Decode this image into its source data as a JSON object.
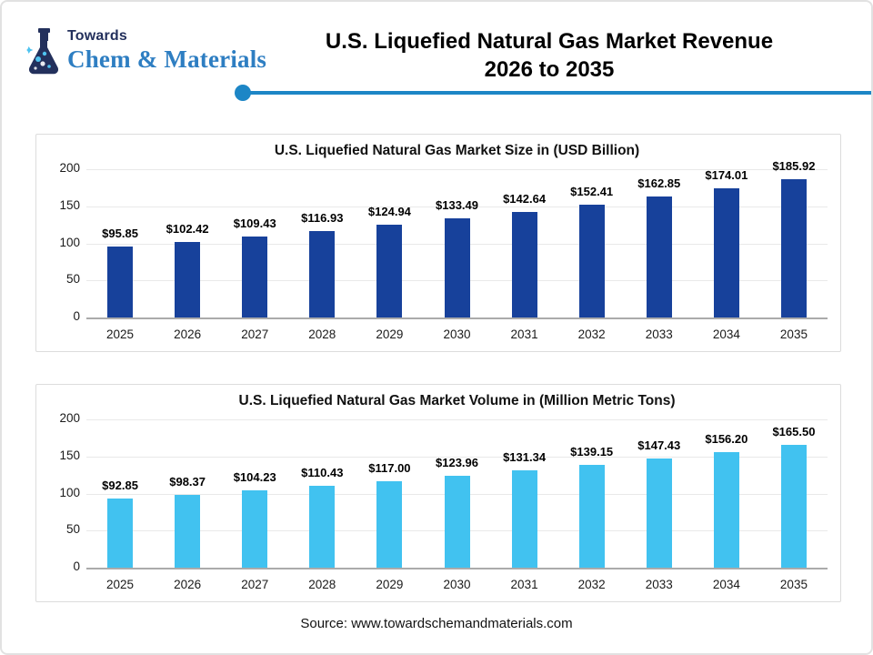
{
  "header": {
    "logo": {
      "towards": "Towards",
      "brand": "Chem & Materials"
    },
    "title_line1": "U.S. Liquefied Natural Gas Market Revenue",
    "title_line2": "2026 to 2035"
  },
  "footer": {
    "source": "Source: www.towardschemandmaterials.com"
  },
  "colors": {
    "size_bar": "#17419b",
    "volume_bar": "#41c2f0",
    "divider": "#1d86c6",
    "logo_navy": "#23305c",
    "brand_blue": "#2e7ec2",
    "gridline": "#e9e9e9",
    "axis_line": "#ababab"
  },
  "chart_data": [
    {
      "type": "bar",
      "title": "U.S. Liquefied Natural Gas Market Size in (USD Billion)",
      "categories": [
        "2025",
        "2026",
        "2027",
        "2028",
        "2029",
        "2030",
        "2031",
        "2032",
        "2033",
        "2034",
        "2035"
      ],
      "values": [
        95.85,
        102.42,
        109.43,
        116.93,
        124.94,
        133.49,
        142.64,
        152.41,
        162.85,
        174.01,
        185.92
      ],
      "labels": [
        "$95.85",
        "$102.42",
        "$109.43",
        "$116.93",
        "$124.94",
        "$133.49",
        "$142.64",
        "$152.41",
        "$162.85",
        "$174.01",
        "$185.92"
      ],
      "xlabel": "",
      "ylabel": "",
      "ylim": [
        0,
        200
      ],
      "yticks": [
        0,
        50,
        100,
        150,
        200
      ],
      "grid": true,
      "legend": "none",
      "bar_color": "#17419b"
    },
    {
      "type": "bar",
      "title": "U.S. Liquefied Natural Gas Market Volume in (Million Metric Tons)",
      "categories": [
        "2025",
        "2026",
        "2027",
        "2028",
        "2029",
        "2030",
        "2031",
        "2032",
        "2033",
        "2034",
        "2035"
      ],
      "values": [
        92.85,
        98.37,
        104.23,
        110.43,
        117.0,
        123.96,
        131.34,
        139.15,
        147.43,
        156.2,
        165.5
      ],
      "labels": [
        "$92.85",
        "$98.37",
        "$104.23",
        "$110.43",
        "$117.00",
        "$123.96",
        "$131.34",
        "$139.15",
        "$147.43",
        "$156.20",
        "$165.50"
      ],
      "xlabel": "",
      "ylabel": "",
      "ylim": [
        0,
        200
      ],
      "yticks": [
        0,
        50,
        100,
        150,
        200
      ],
      "grid": true,
      "legend": "none",
      "bar_color": "#41c2f0"
    }
  ]
}
